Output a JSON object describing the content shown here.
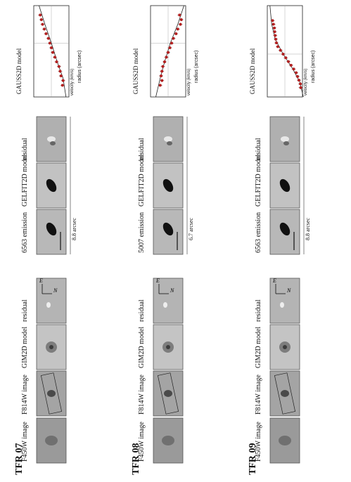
{
  "rows": [
    {
      "id": "TFR 07",
      "labels": [
        "F450W image",
        "F814W image",
        "GIM2D model",
        "residual",
        "6563 emission",
        "GELFIT2D model",
        "residual"
      ],
      "scale_label": "8.8 arcsec",
      "compass": {
        "n": "N",
        "e": "E"
      },
      "plot_ylabel": "GAUSS2D model",
      "plot_xlabel": "velocity (km/s)",
      "plot_rlabel": "radius (arcsec)",
      "velocity_ticks": [
        "−60",
        "−40",
        "−20",
        "0",
        "20",
        "40",
        "60"
      ],
      "radius_ticks": [
        "2",
        "1",
        "0",
        "−1"
      ]
    },
    {
      "id": "TFR 08",
      "labels": [
        "F450W image",
        "F814W image",
        "GIM2D model",
        "residual",
        "5007 emission",
        "GELFIT2D model",
        "residual"
      ],
      "scale_label": "6.7 arcsec",
      "compass": {
        "n": "N",
        "e": "E"
      },
      "plot_ylabel": "GAUSS2D model",
      "plot_xlabel": "velocity (km/s)",
      "plot_rlabel": "radius (arcsec)",
      "velocity_ticks": [
        "−40",
        "−20",
        "0",
        "20",
        "40"
      ],
      "radius_ticks": [
        "2",
        "1",
        "0",
        "−1"
      ]
    },
    {
      "id": "TFR 09",
      "labels": [
        "F450W image",
        "F814W image",
        "GIM2D model",
        "residual",
        "6563 emission",
        "GELFIT2D model",
        "residual"
      ],
      "scale_label": "8.8 arcsec",
      "compass": {
        "n": "N",
        "e": "E"
      },
      "plot_ylabel": "GAUSS2D model",
      "plot_xlabel": "velocity (km/s)",
      "plot_rlabel": "radius (arcsec)",
      "velocity_ticks": [
        "−100",
        "−50",
        "0",
        "50",
        "100"
      ],
      "radius_ticks": [
        "2",
        "1",
        "0",
        "−1",
        "−2"
      ]
    }
  ],
  "chart_data": [
    {
      "type": "scatter",
      "title": "TFR 07",
      "xlabel": "radius (arcsec)",
      "ylabel": "velocity (km/s)",
      "xlim": [
        2.3,
        -1.6
      ],
      "ylim": [
        -60,
        60
      ],
      "points": [
        [
          1.8,
          38
        ],
        [
          1.6,
          40
        ],
        [
          1.4,
          33
        ],
        [
          1.2,
          30
        ],
        [
          1.0,
          26
        ],
        [
          0.8,
          18
        ],
        [
          0.6,
          12
        ],
        [
          0.4,
          5
        ],
        [
          0.2,
          0
        ],
        [
          0.0,
          -5
        ],
        [
          -0.2,
          -10
        ],
        [
          -0.4,
          -18
        ],
        [
          -0.6,
          -24
        ],
        [
          -0.8,
          -30
        ],
        [
          -1.0,
          -34
        ],
        [
          -1.2,
          -38
        ]
      ],
      "model": [
        [
          2.3,
          50
        ],
        [
          1.5,
          40
        ],
        [
          0.8,
          20
        ],
        [
          0.0,
          0
        ],
        [
          -0.8,
          -22
        ],
        [
          -1.6,
          -42
        ]
      ]
    },
    {
      "type": "scatter",
      "title": "TFR 08",
      "xlabel": "radius (arcsec)",
      "ylabel": "velocity (km/s)",
      "xlim": [
        2.3,
        -1.6
      ],
      "ylim": [
        -40,
        40
      ],
      "points": [
        [
          1.8,
          -18
        ],
        [
          1.6,
          -14
        ],
        [
          1.4,
          -16
        ],
        [
          1.2,
          -14
        ],
        [
          1.0,
          -12
        ],
        [
          0.8,
          -8
        ],
        [
          0.6,
          -4
        ],
        [
          0.4,
          0
        ],
        [
          0.2,
          4
        ],
        [
          0.0,
          8
        ],
        [
          -0.2,
          12
        ],
        [
          -0.4,
          18
        ],
        [
          -0.6,
          22
        ],
        [
          -0.8,
          28
        ],
        [
          -1.0,
          30
        ],
        [
          -1.2,
          26
        ]
      ],
      "model": [
        [
          2.3,
          -28
        ],
        [
          1.5,
          -18
        ],
        [
          0.8,
          -8
        ],
        [
          0.0,
          5
        ],
        [
          -0.8,
          22
        ],
        [
          -1.6,
          36
        ]
      ]
    },
    {
      "type": "scatter",
      "title": "TFR 09",
      "xlabel": "radius (arcsec)",
      "ylabel": "velocity (km/s)",
      "xlim": [
        2.3,
        -2.6
      ],
      "ylim": [
        -100,
        100
      ],
      "points": [
        [
          1.8,
          90
        ],
        [
          1.6,
          88
        ],
        [
          1.4,
          80
        ],
        [
          1.2,
          72
        ],
        [
          1.0,
          64
        ],
        [
          0.8,
          50
        ],
        [
          0.6,
          35
        ],
        [
          0.4,
          20
        ],
        [
          0.2,
          5
        ],
        [
          0.0,
          -10
        ],
        [
          -0.2,
          -25
        ],
        [
          -0.4,
          -40
        ],
        [
          -0.6,
          -48
        ],
        [
          -0.8,
          -52
        ],
        [
          -1.0,
          -55
        ],
        [
          -1.2,
          -58
        ],
        [
          -1.4,
          -60
        ],
        [
          -1.6,
          -65
        ],
        [
          -1.8,
          -70
        ]
      ],
      "model": [
        [
          2.3,
          105
        ],
        [
          1.5,
          85
        ],
        [
          0.8,
          45
        ],
        [
          0.0,
          -10
        ],
        [
          -0.8,
          -55
        ],
        [
          -1.6,
          -75
        ],
        [
          -2.6,
          -85
        ]
      ]
    }
  ]
}
